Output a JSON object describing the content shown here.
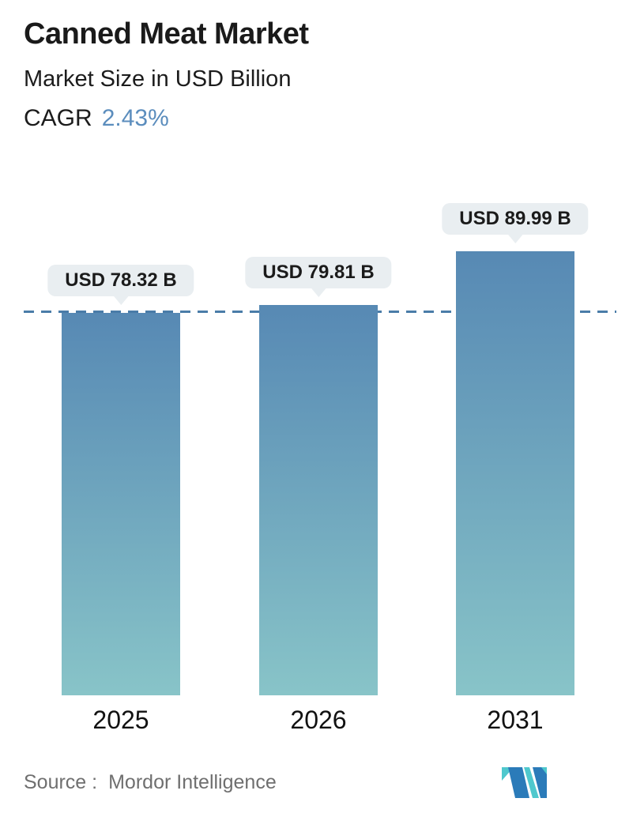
{
  "header": {
    "title": "Canned Meat Market",
    "subtitle": "Market Size in USD Billion",
    "cagr_label": "CAGR",
    "cagr_value": "2.43%"
  },
  "chart_data": {
    "type": "bar",
    "title": "Canned Meat Market",
    "subtitle": "Market Size in USD Billion",
    "cagr_percent": 2.43,
    "unit": "USD Billion",
    "categories": [
      "2025",
      "2026",
      "2031"
    ],
    "values": [
      78.32,
      79.81,
      89.99
    ],
    "labels": [
      "USD 78.32 B",
      "USD 79.81 B",
      "USD 89.99 B"
    ],
    "reference_line": {
      "style": "dashed",
      "at_value": 78.32,
      "color": "#4a7ca8"
    },
    "legend": "none",
    "gridlines": false,
    "xlabel": "",
    "ylabel": ""
  },
  "footer": {
    "source_label": "Source :",
    "source_value": "Mordor Intelligence"
  },
  "colors": {
    "accent_blue": "#5b8dbd",
    "title_text": "#1a1a1a",
    "source_text": "#6f6f6f",
    "bar_gradient_top": "#5789b4",
    "bar_gradient_bottom": "#88c4c8",
    "dashed_line": "#4a7ca8",
    "callout_bg": "#e9eef1",
    "logo_teal": "#4fc8cd",
    "logo_blue": "#2b7bb9"
  }
}
